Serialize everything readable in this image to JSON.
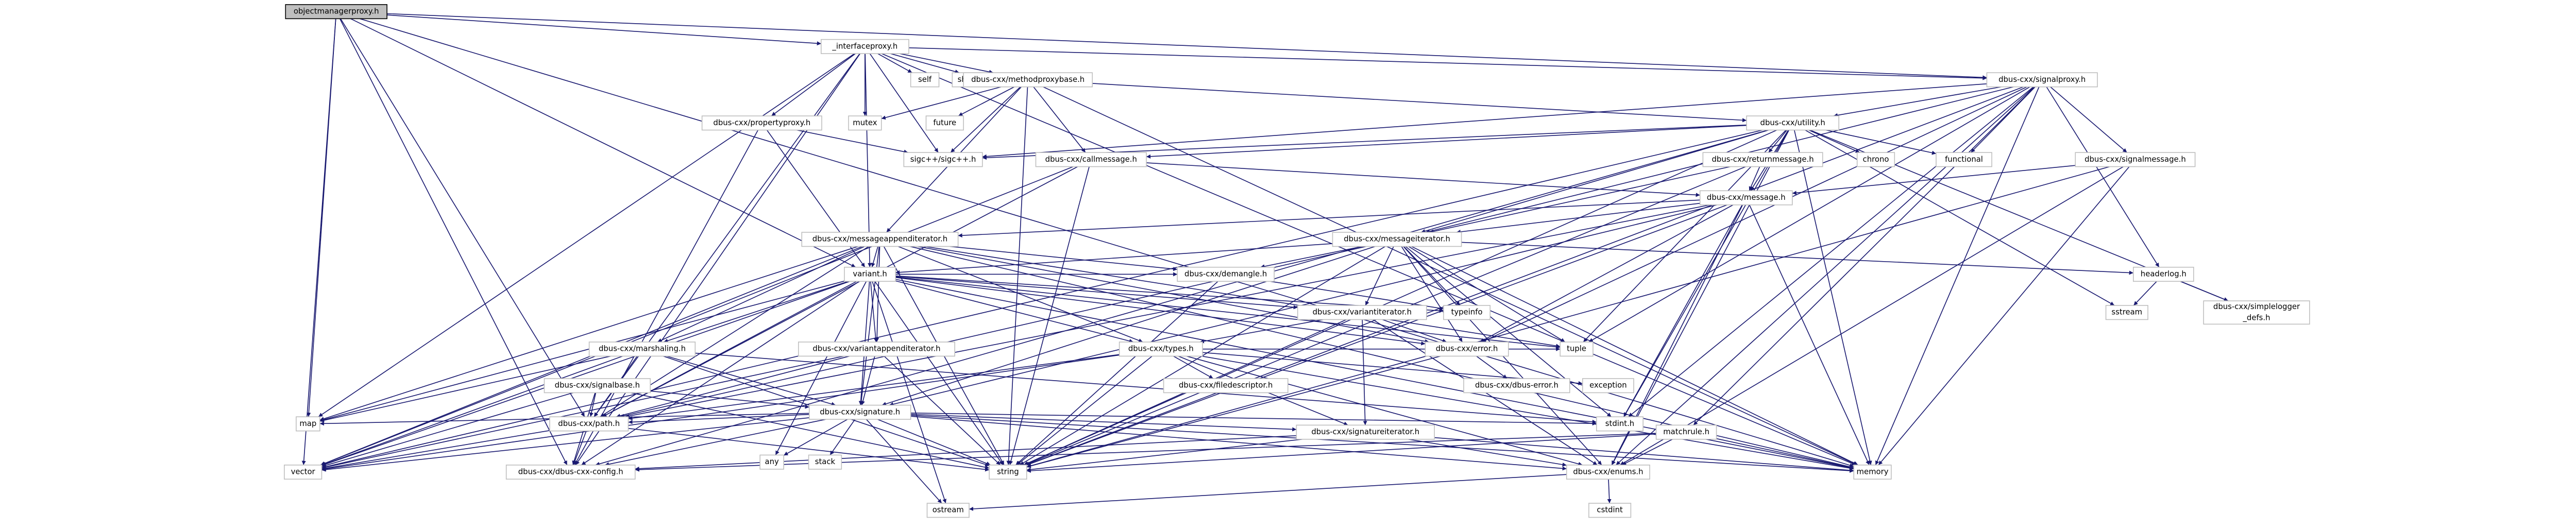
{
  "nodes": [
    {
      "label": "objectmanagerproxy.h"
    },
    {
      "label": "_interfaceproxy.h"
    },
    {
      "label": "self"
    },
    {
      "label": "shared_mutex"
    },
    {
      "label": "dbus-cxx/methodproxybase.h"
    },
    {
      "label": "dbus-cxx/signalproxy.h"
    },
    {
      "label": "dbus-cxx/propertyproxy.h"
    },
    {
      "label": "mutex"
    },
    {
      "label": "future"
    },
    {
      "label": "dbus-cxx/utility.h"
    },
    {
      "label": "sigc++/sigc++.h"
    },
    {
      "label": "dbus-cxx/callmessage.h"
    },
    {
      "label": "dbus-cxx/returnmessage.h"
    },
    {
      "label": "functional"
    },
    {
      "label": "chrono"
    },
    {
      "label": "dbus-cxx/signalmessage.h"
    },
    {
      "label": "dbus-cxx/message.h"
    },
    {
      "label": "dbus-cxx/messageappenditerator.h"
    },
    {
      "label": "dbus-cxx/messageiterator.h"
    },
    {
      "label": "variant.h"
    },
    {
      "label": "dbus-cxx/demangle.h"
    },
    {
      "label": "headerlog.h"
    },
    {
      "label": "typeinfo"
    },
    {
      "label": "sstream"
    },
    {
      "lines": [
        "dbus-cxx/simplelogger",
        "_defs.h"
      ]
    },
    {
      "label": "dbus-cxx/variantiterator.h"
    },
    {
      "label": "dbus-cxx/error.h"
    },
    {
      "label": "dbus-cxx/marshaling.h"
    },
    {
      "label": "dbus-cxx/variantappenditerator.h"
    },
    {
      "label": "dbus-cxx/types.h"
    },
    {
      "label": "tuple"
    },
    {
      "label": "exception"
    },
    {
      "label": "dbus-cxx/dbus-error.h"
    },
    {
      "label": "dbus-cxx/filedescriptor.h"
    },
    {
      "label": "dbus-cxx/signalbase.h"
    },
    {
      "label": "dbus-cxx/signature.h"
    },
    {
      "label": "map"
    },
    {
      "label": "any"
    },
    {
      "label": "stack"
    },
    {
      "label": "dbus-cxx/path.h"
    },
    {
      "label": "stdint.h"
    },
    {
      "label": "dbus-cxx/signatureiterator.h"
    },
    {
      "label": "matchrule.h"
    },
    {
      "label": "vector"
    },
    {
      "label": "dbus-cxx/dbus-cxx-config.h"
    },
    {
      "label": "string"
    },
    {
      "label": "memory"
    },
    {
      "label": "dbus-cxx/enums.h"
    },
    {
      "label": "ostream"
    },
    {
      "label": "cstdint"
    }
  ]
}
